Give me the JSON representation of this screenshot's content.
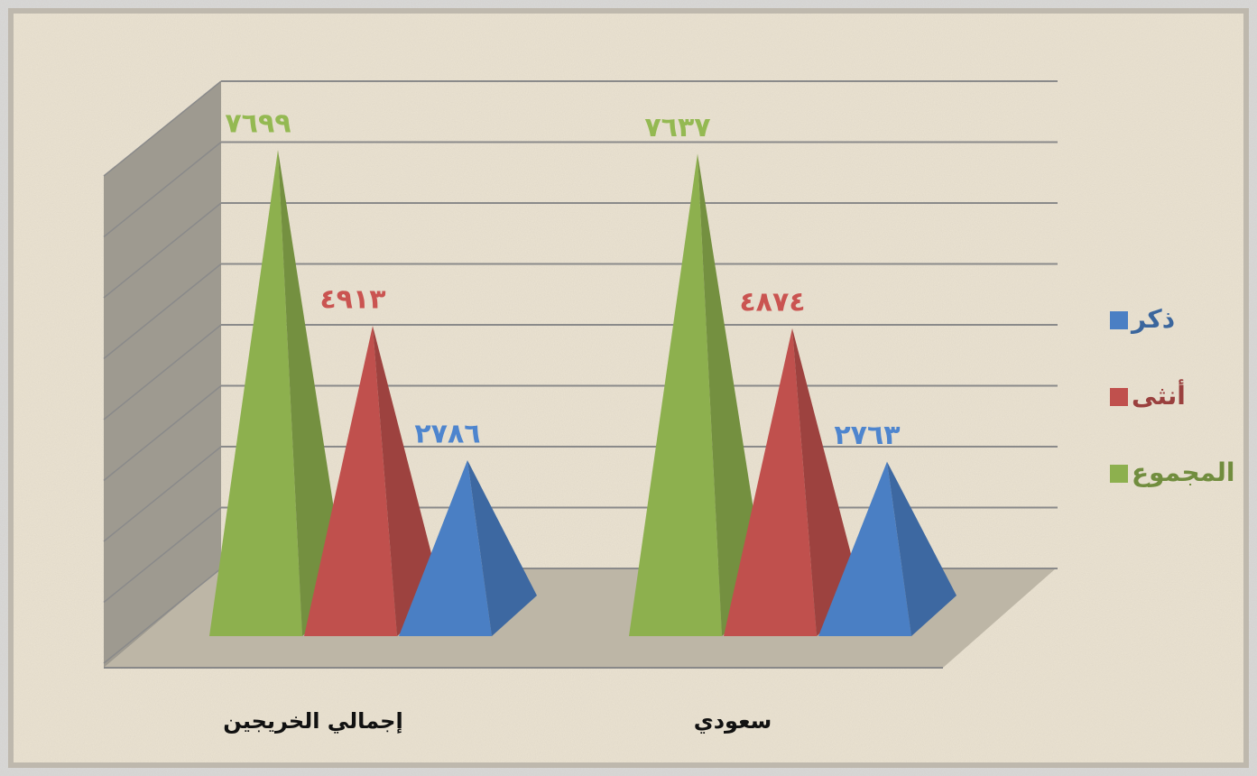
{
  "chart_data": {
    "type": "pyramid3d",
    "categories": [
      "إجمالي الخريجين",
      "سعودي"
    ],
    "series": [
      {
        "name": "ذكر",
        "color": "#4a7fc4",
        "values": [
          2786,
          2763
        ],
        "value_labels": [
          "٢٧٨٦",
          "٢٧٦٣"
        ]
      },
      {
        "name": "أنثى",
        "color": "#c0504d",
        "values": [
          4913,
          4874
        ],
        "value_labels": [
          "٤٩١٣",
          "٤٨٧٤"
        ]
      },
      {
        "name": "المجموع",
        "color": "#8db04e",
        "values": [
          7699,
          7637
        ],
        "value_labels": [
          "٧٦٩٩",
          "٧٦٣٧"
        ]
      }
    ],
    "ylim": [
      0,
      8000
    ],
    "yticks": [
      0,
      1000,
      2000,
      3000,
      4000,
      5000,
      6000,
      7000,
      8000
    ],
    "grid": true
  }
}
